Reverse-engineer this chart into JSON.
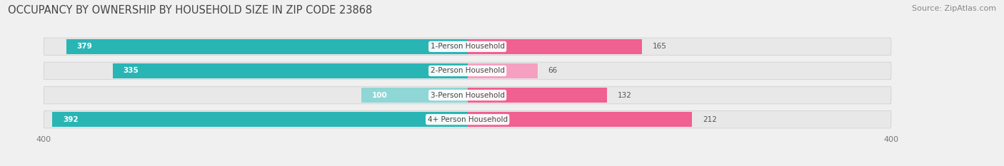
{
  "title": "OCCUPANCY BY OWNERSHIP BY HOUSEHOLD SIZE IN ZIP CODE 23868",
  "source": "Source: ZipAtlas.com",
  "categories": [
    "1-Person Household",
    "2-Person Household",
    "3-Person Household",
    "4+ Person Household"
  ],
  "owner_values": [
    379,
    335,
    100,
    392
  ],
  "renter_values": [
    165,
    66,
    132,
    212
  ],
  "owner_color": "#2ab5b5",
  "owner_color_light": "#8fd6d6",
  "renter_color_dark": "#f06090",
  "renter_color_light": "#f5a0c0",
  "axis_max": 400,
  "title_fontsize": 10.5,
  "source_fontsize": 8,
  "label_fontsize": 7.5,
  "tick_fontsize": 8,
  "bar_height": 0.62,
  "background_color": "#f0f0f0",
  "row_bg_color": "#e0e0e0",
  "pill_color": "#e8e8e8"
}
